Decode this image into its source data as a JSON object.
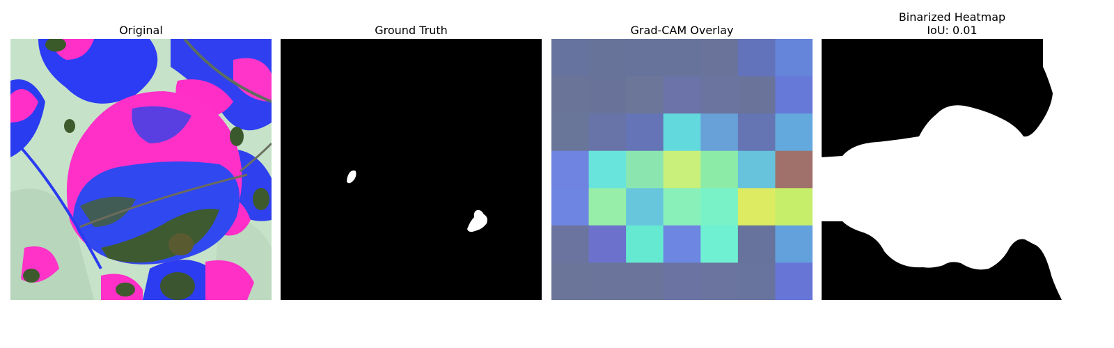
{
  "figure": {
    "panels": [
      {
        "title": "Original"
      },
      {
        "title": "Ground Truth"
      },
      {
        "title": "Grad-CAM Overlay"
      },
      {
        "title": "Binarized Heatmap",
        "subtitle": "IoU: 0.01"
      }
    ]
  },
  "gradcam": {
    "grid_rows": 7,
    "grid_cols": 7,
    "cells": [
      [
        "#66739e",
        "#687399",
        "#68739c",
        "#67739b",
        "#6a7399",
        "#6373bb",
        "#6585da"
      ],
      [
        "#6a7498",
        "#697399",
        "#6b7698",
        "#6b73a8",
        "#6a749f",
        "#6a749a",
        "#6678d8"
      ],
      [
        "#69769a",
        "#6874a8",
        "#6574b6",
        "#62d9dd",
        "#68a0d8",
        "#6574b2",
        "#63a9dd"
      ],
      [
        "#6e84e0",
        "#68e4dc",
        "#8ae6ae",
        "#c9f07b",
        "#8ceca7",
        "#67c2dc",
        "#a0706a"
      ],
      [
        "#6e85e2",
        "#96eea9",
        "#68c6dc",
        "#8af0ba",
        "#7af2c8",
        "#dceb61",
        "#c6ee6a"
      ],
      [
        "#6a749e",
        "#6c72cc",
        "#65e9d0",
        "#6c86e1",
        "#70f0d2",
        "#67739c",
        "#63a1dd"
      ],
      [
        "#6b7599",
        "#6b759b",
        "#6b759b",
        "#6a73a2",
        "#6a749f",
        "#68749e",
        "#6776d6"
      ]
    ]
  },
  "colors": {
    "magenta": "#ff2fc8",
    "blue": "#2a3cff",
    "pale_green": "#c8e6c8",
    "dark_green": "#3d5a2c",
    "mask_white": "#ffffff",
    "mask_black": "#000000"
  }
}
